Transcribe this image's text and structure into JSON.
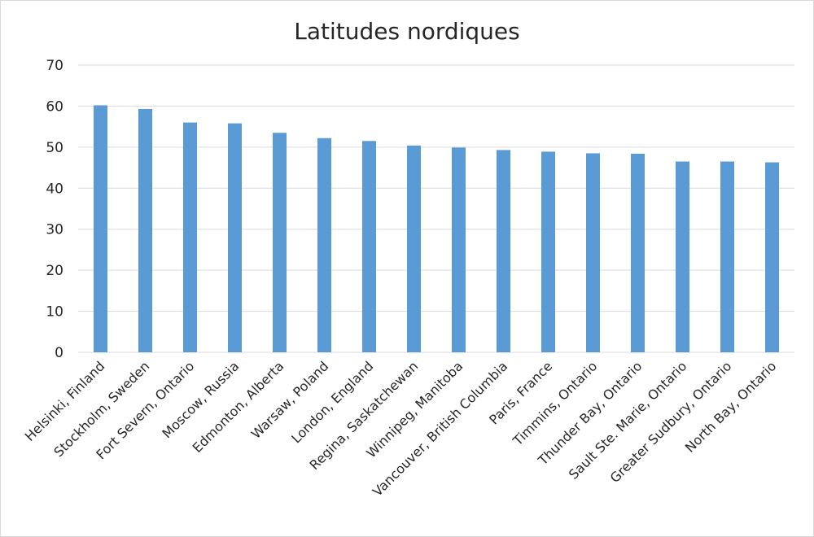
{
  "chart_data": {
    "type": "bar",
    "title": "Latitudes nordiques",
    "xlabel": "",
    "ylabel": "",
    "ylim": [
      0,
      70
    ],
    "yticks": [
      0,
      10,
      20,
      30,
      40,
      50,
      60,
      70
    ],
    "grid": true,
    "legend": "none",
    "bar_color": "#5b9bd5",
    "categories": [
      "Helsinki, Finland",
      "Stockholm, Sweden",
      "Fort Severn, Ontario",
      "Moscow, Russia",
      "Edmonton, Alberta",
      "Warsaw, Poland",
      "London, England",
      "Regina, Saskatchewan",
      "Winnipeg, Manitoba",
      "Vancouver, British Columbia",
      "Paris, France",
      "Timmins, Ontario",
      "Thunder Bay, Ontario",
      "Sault Ste. Marie, Ontario",
      "Greater Sudbury, Ontario",
      "North Bay, Ontario"
    ],
    "values": [
      60.2,
      59.3,
      56.0,
      55.8,
      53.5,
      52.2,
      51.5,
      50.4,
      49.9,
      49.3,
      48.9,
      48.5,
      48.4,
      46.5,
      46.5,
      46.3
    ]
  }
}
